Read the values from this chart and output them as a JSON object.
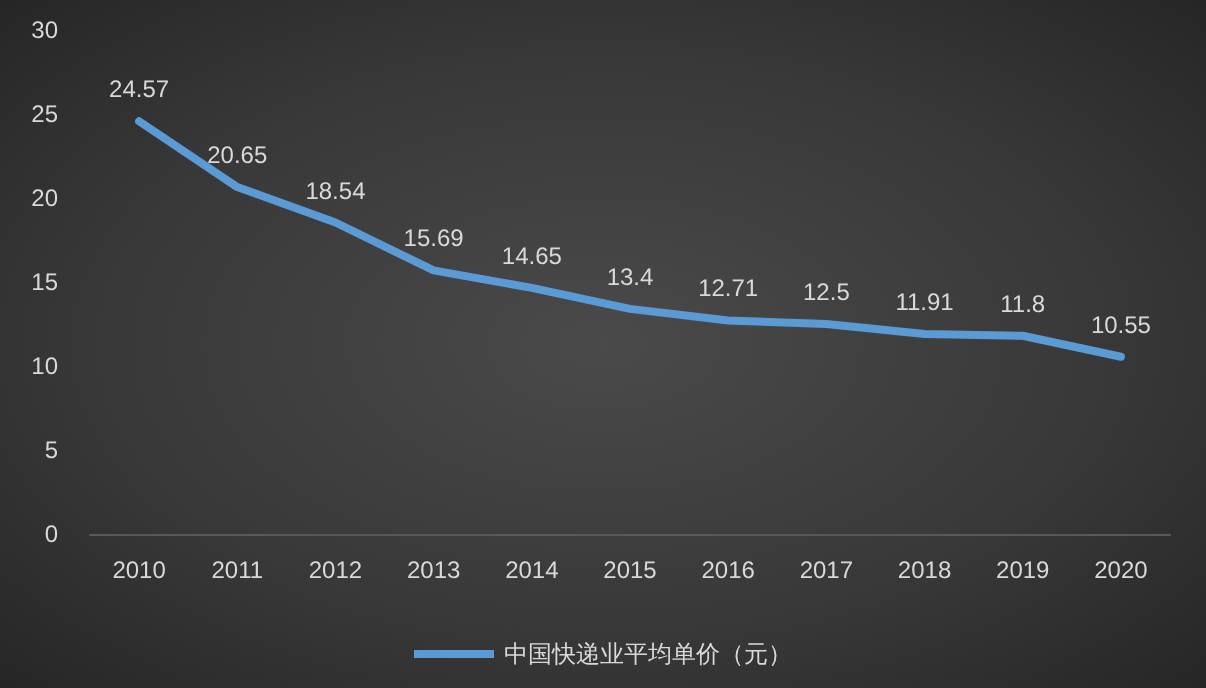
{
  "chart_data": {
    "type": "line",
    "categories": [
      "2010",
      "2011",
      "2012",
      "2013",
      "2014",
      "2015",
      "2016",
      "2017",
      "2018",
      "2019",
      "2020"
    ],
    "series": [
      {
        "name": "中国快递业平均单价（元）",
        "color": "#5b9bd5",
        "values": [
          24.57,
          20.65,
          18.54,
          15.69,
          14.65,
          13.4,
          12.71,
          12.5,
          11.91,
          11.8,
          10.55
        ]
      }
    ],
    "ylim": [
      0,
      30
    ],
    "yticks": [
      0,
      5,
      10,
      15,
      20,
      25,
      30
    ],
    "data_labels": true,
    "legend": "bottom",
    "grid": false,
    "marker": "none",
    "line_style": "solid"
  }
}
